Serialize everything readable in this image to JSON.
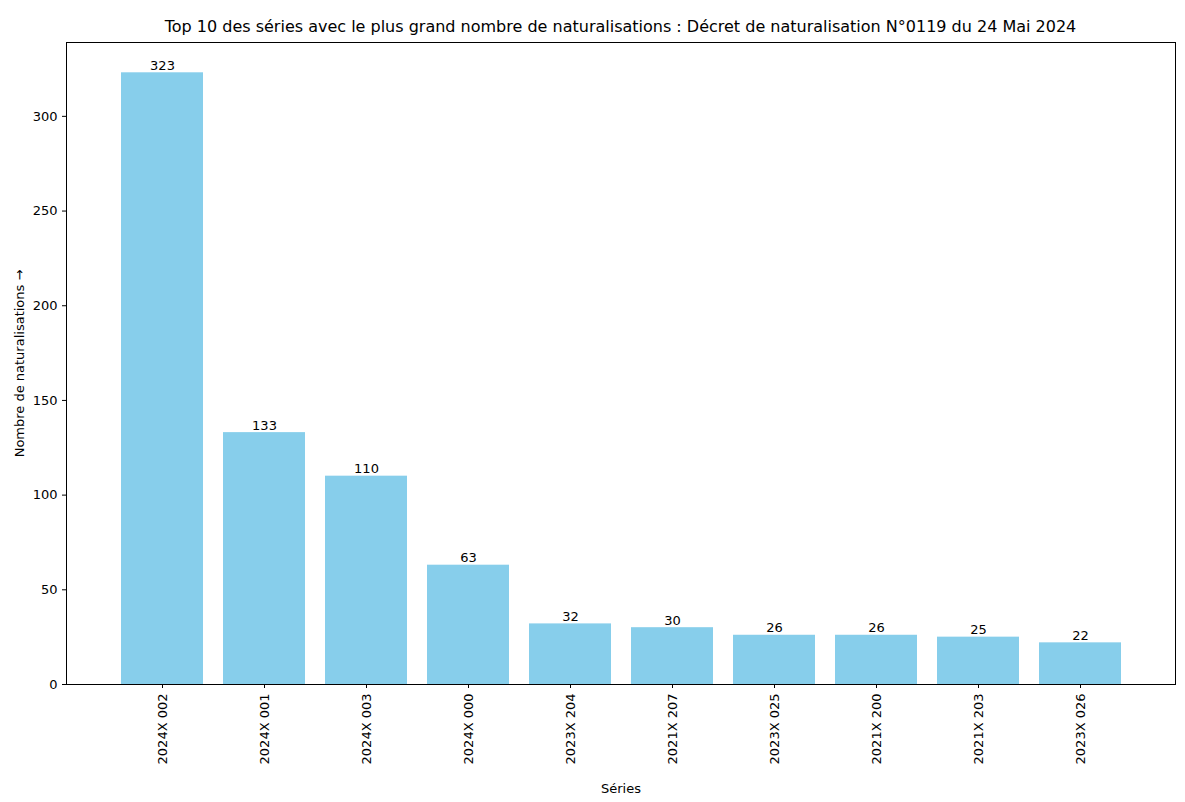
{
  "chart_data": {
    "type": "bar",
    "title": "Top 10 des séries avec le plus grand nombre de naturalisations : Décret de naturalisation N°0119 du 24 Mai 2024",
    "x_label": "Séries",
    "y_label": "Nombre de naturalisations",
    "categories": [
      "2024X 002",
      "2024X 001",
      "2024X 003",
      "2024X 000",
      "2023X 204",
      "2021X 207",
      "2023X 025",
      "2021X 200",
      "2021X 203",
      "2023X 026"
    ],
    "values": [
      323,
      133,
      110,
      63,
      32,
      30,
      26,
      26,
      25,
      22
    ],
    "color": "#87ceeb",
    "ylim": [
      0,
      339
    ],
    "yticks": [
      0,
      50,
      100,
      150,
      200,
      250,
      300
    ],
    "grid": false,
    "data_labels": true
  }
}
